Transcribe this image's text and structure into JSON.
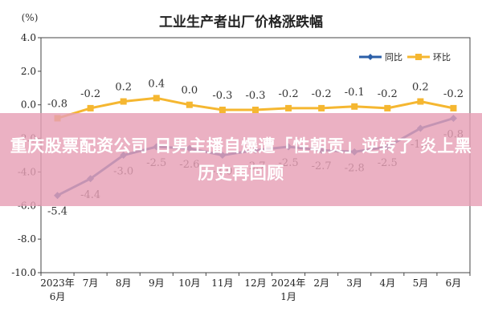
{
  "chart_data": {
    "type": "line",
    "title": "工业生产者出厂价格涨跌幅",
    "yunit": "(%)",
    "ylim": [
      -10.0,
      4.0
    ],
    "yticks": [
      "4.0",
      "2.0",
      "0.0",
      "-2.0",
      "-4.0",
      "-6.0",
      "-8.0",
      "-10.0"
    ],
    "categories": [
      [
        "2023年",
        "6月"
      ],
      [
        "7月"
      ],
      [
        "8月"
      ],
      [
        "9月"
      ],
      [
        "10月"
      ],
      [
        "11月"
      ],
      [
        "12月"
      ],
      [
        "2024年",
        "1月"
      ],
      [
        "2月"
      ],
      [
        "3月"
      ],
      [
        "4月"
      ],
      [
        "5月"
      ],
      [
        "6月"
      ]
    ],
    "legend_position": "top-right",
    "grid": false,
    "series": [
      {
        "name": "同比",
        "color": "#2b5fa8",
        "values": [
          -5.4,
          -4.4,
          -3.0,
          -2.5,
          -2.6,
          -3.0,
          -2.7,
          -2.5,
          -2.7,
          -2.8,
          -2.5,
          -1.4,
          -0.8
        ],
        "labels": [
          "-5.4",
          "-4.4",
          "-3.0",
          "-2.5",
          "-2.6",
          "-3.0",
          "-2.7",
          "-2.5",
          "-2.7",
          "-2.8",
          "-2.5",
          "-1.4",
          "-0.8"
        ]
      },
      {
        "name": "环比",
        "color": "#f5b731",
        "values": [
          -0.8,
          -0.2,
          0.2,
          0.4,
          0.0,
          -0.3,
          -0.3,
          -0.2,
          -0.2,
          -0.1,
          -0.2,
          0.2,
          -0.2
        ],
        "labels": [
          "-0.8",
          "-0.2",
          "0.2",
          "0.4",
          "0.0",
          "-0.3",
          "-0.3",
          "-0.2",
          "-0.2",
          "-0.1",
          "-0.2",
          "0.2",
          "-0.2"
        ]
      }
    ]
  },
  "overlay": {
    "headline": "重庆股票配资公司 日男主播自爆遭「性朝贡」逆转了 炎上黑历史再回顾"
  }
}
